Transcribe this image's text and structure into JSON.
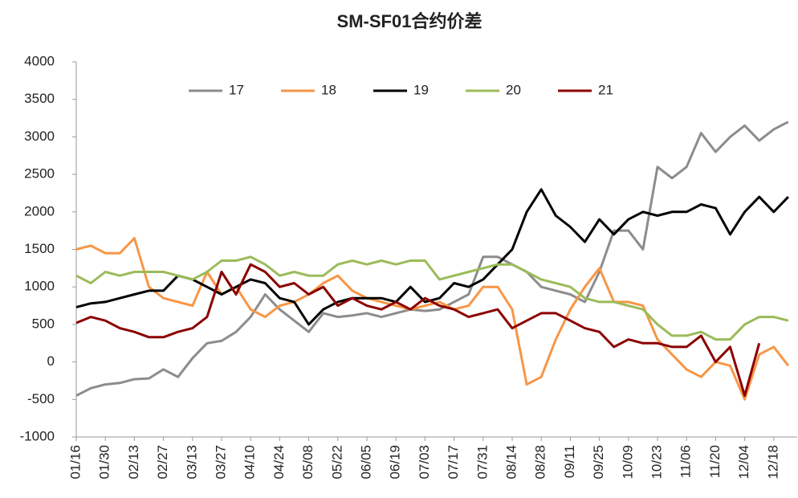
{
  "chart_data": {
    "type": "line",
    "title": "SM-SF01合约价差",
    "categories": [
      "01/16",
      null,
      "01/30",
      null,
      "02/13",
      null,
      "02/27",
      null,
      "03/13",
      null,
      "03/27",
      null,
      "04/10",
      null,
      "04/24",
      null,
      "05/08",
      null,
      "05/22",
      null,
      "06/05",
      null,
      "06/19",
      null,
      "07/03",
      null,
      "07/17",
      null,
      "07/31",
      null,
      "08/14",
      null,
      "08/28",
      null,
      "09/11",
      null,
      "09/25",
      null,
      "10/09",
      null,
      "10/23",
      null,
      "11/06",
      null,
      "11/20",
      null,
      "12/04",
      null,
      "12/18",
      null
    ],
    "series": [
      {
        "name": "17",
        "color": "#8c8c8c",
        "values": [
          -450,
          -350,
          -300,
          -280,
          -230,
          -220,
          -100,
          -200,
          50,
          250,
          280,
          400,
          600,
          900,
          700,
          550,
          400,
          650,
          600,
          620,
          650,
          600,
          650,
          700,
          680,
          700,
          800,
          900,
          1400,
          1400,
          1300,
          1200,
          1000,
          950,
          900,
          800,
          1200,
          1750,
          1750,
          1500,
          2600,
          2450,
          2600,
          3050,
          2800,
          3000,
          3150,
          2950,
          3100,
          3200
        ]
      },
      {
        "name": "18",
        "color": "#f79646",
        "values": [
          1500,
          1550,
          1450,
          1450,
          1650,
          1000,
          850,
          800,
          750,
          1200,
          900,
          1000,
          700,
          600,
          750,
          800,
          900,
          1050,
          1150,
          950,
          850,
          800,
          750,
          700,
          750,
          800,
          700,
          750,
          1000,
          1000,
          700,
          -300,
          -200,
          300,
          700,
          1000,
          1250,
          800,
          800,
          750,
          300,
          100,
          -100,
          -200,
          0,
          -50,
          -500,
          100,
          200,
          -50
        ]
      },
      {
        "name": "19",
        "color": "#000000",
        "values": [
          730,
          780,
          800,
          850,
          900,
          950,
          950,
          1150,
          1100,
          1000,
          900,
          1000,
          1100,
          1050,
          850,
          800,
          500,
          700,
          800,
          850,
          850,
          850,
          800,
          1000,
          800,
          850,
          1050,
          1000,
          1100,
          1300,
          1500,
          2000,
          2300,
          1950,
          1800,
          1600,
          1900,
          1700,
          1900,
          2000,
          1950,
          2000,
          2000,
          2100,
          2050,
          1700,
          2000,
          2200,
          2000,
          2200
        ]
      },
      {
        "name": "20",
        "color": "#9bbb59",
        "values": [
          1150,
          1050,
          1200,
          1150,
          1200,
          1200,
          1200,
          1150,
          1100,
          1200,
          1350,
          1350,
          1400,
          1300,
          1150,
          1200,
          1150,
          1150,
          1300,
          1350,
          1300,
          1350,
          1300,
          1350,
          1350,
          1100,
          1150,
          1200,
          1250,
          1300,
          1300,
          1200,
          1100,
          1050,
          1000,
          850,
          800,
          800,
          750,
          700,
          500,
          350,
          350,
          400,
          300,
          300,
          500,
          600,
          600,
          550
        ]
      },
      {
        "name": "21",
        "color": "#8b0000",
        "values": [
          520,
          600,
          550,
          450,
          400,
          330,
          330,
          400,
          450,
          600,
          1200,
          900,
          1300,
          1200,
          1000,
          1050,
          900,
          1000,
          750,
          850,
          750,
          700,
          800,
          700,
          850,
          750,
          700,
          600,
          650,
          700,
          450,
          550,
          650,
          650,
          550,
          450,
          400,
          200,
          300,
          250,
          250,
          200,
          200,
          350,
          0,
          200,
          -450,
          250,
          null,
          null
        ]
      }
    ],
    "ylim": [
      -1000,
      4000
    ],
    "yticks": [
      -1000,
      -500,
      0,
      500,
      1000,
      1500,
      2000,
      2500,
      3000,
      3500,
      4000
    ],
    "legend": "top"
  }
}
